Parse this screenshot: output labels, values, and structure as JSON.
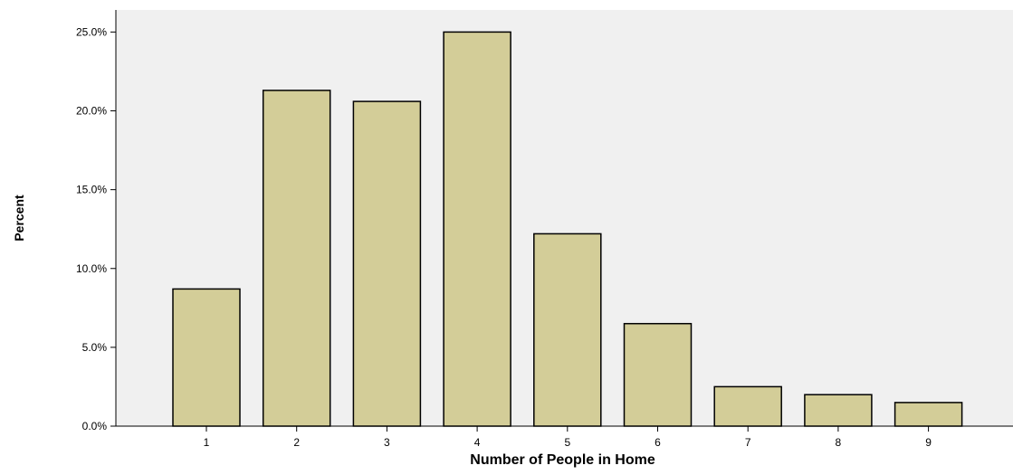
{
  "chart_data": {
    "type": "bar",
    "xlabel": "Number of People in Home",
    "ylabel": "Percent",
    "categories": [
      "1",
      "2",
      "3",
      "4",
      "5",
      "6",
      "7",
      "8",
      "9"
    ],
    "values": [
      8.7,
      21.3,
      20.6,
      25.0,
      12.2,
      6.5,
      2.5,
      2.0,
      1.5
    ],
    "ylim": [
      0,
      26.4
    ],
    "yticks": [
      0,
      5,
      10,
      15,
      20,
      25
    ],
    "ytick_labels": [
      "0.0%",
      "5.0%",
      "10.0%",
      "15.0%",
      "20.0%",
      "25.0%"
    ],
    "grid": false,
    "legend": "none",
    "colors": {
      "bar_fill": "#d3cd98",
      "bar_stroke": "#000000",
      "plot_background": "#f0f0f0",
      "axis": "#000000"
    }
  }
}
